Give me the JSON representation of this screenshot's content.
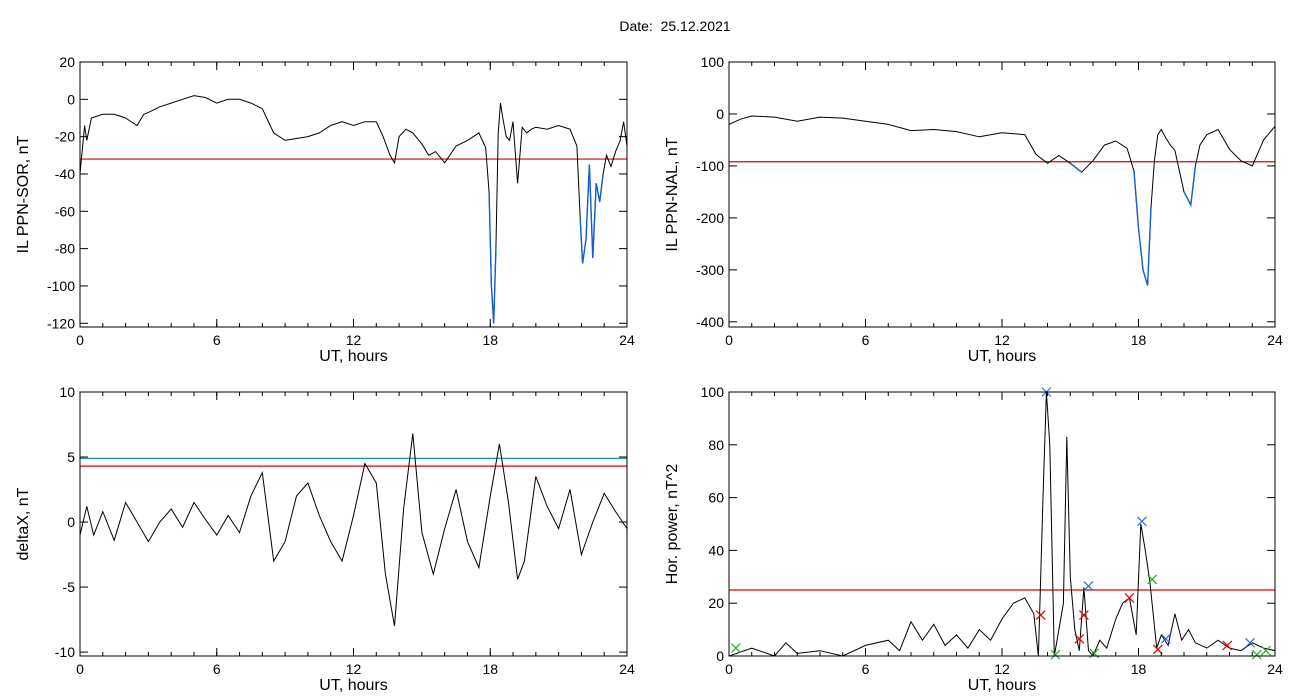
{
  "header": {
    "date_label": "Date:",
    "date_value": "25.12.2021"
  },
  "colors": {
    "trace": "#000000",
    "below_threshold": "#1060d0",
    "threshold": "#e00000",
    "upper_threshold": "#009090",
    "marker_blue": "#2070e0",
    "marker_red": "#d02020",
    "marker_green": "#20b020"
  },
  "chart_data": [
    {
      "type": "line",
      "panel": "top-left",
      "xlabel": "UT, hours",
      "ylabel": "IL PPN-SOR, nT",
      "xlim": [
        0,
        24
      ],
      "ylim": [
        -122,
        20
      ],
      "xticks": [
        0,
        6,
        12,
        18,
        24
      ],
      "yticks": [
        20,
        0,
        -20,
        -40,
        -60,
        -80,
        -100,
        -120
      ],
      "thresholds": [
        {
          "value": -32,
          "color": "red"
        }
      ],
      "series": [
        {
          "x": [
            0,
            0.2,
            0.3,
            0.5,
            1,
            1.5,
            2,
            2.5,
            2.8,
            3,
            3.5,
            4,
            4.5,
            5,
            5.5,
            6,
            6.5,
            7,
            7.5,
            8,
            8.5,
            9,
            9.5,
            10,
            10.5,
            11,
            11.5,
            12,
            12.5,
            13,
            13.3,
            13.6,
            13.8,
            14,
            14.3,
            14.6,
            15,
            15.3,
            15.6,
            16,
            16.5,
            17,
            17.5,
            17.8,
            17.95,
            18.05,
            18.15,
            18.25,
            18.35,
            18.45,
            18.55,
            18.7,
            18.85,
            19,
            19.2,
            19.4,
            19.6,
            19.8,
            20,
            20.5,
            21,
            21.5,
            21.8,
            21.95,
            22.05,
            22.2,
            22.35,
            22.5,
            22.65,
            22.8,
            22.95,
            23.1,
            23.3,
            23.5,
            23.7,
            23.85,
            24
          ],
          "y": [
            -40,
            -14,
            -22,
            -10,
            -8,
            -8,
            -10,
            -14,
            -8,
            -7,
            -4,
            -2,
            0,
            2,
            1,
            -2,
            0,
            0,
            -2,
            -5,
            -18,
            -22,
            -21,
            -20,
            -18,
            -14,
            -12,
            -14,
            -12,
            -12,
            -20,
            -30,
            -34,
            -20,
            -16,
            -18,
            -24,
            -30,
            -28,
            -34,
            -25,
            -22,
            -18,
            -26,
            -50,
            -100,
            -120,
            -80,
            -18,
            -2,
            -10,
            -20,
            -22,
            -12,
            -45,
            -15,
            -18,
            -16,
            -15,
            -16,
            -14,
            -16,
            -25,
            -65,
            -88,
            -75,
            -35,
            -85,
            -45,
            -55,
            -40,
            -30,
            -36,
            -28,
            -22,
            -12,
            -25
          ]
        }
      ]
    },
    {
      "type": "line",
      "panel": "top-right",
      "xlabel": "UT, hours",
      "ylabel": "IL PPN-NAL, nT",
      "xlim": [
        0,
        24
      ],
      "ylim": [
        -410,
        100
      ],
      "xticks": [
        0,
        6,
        12,
        18,
        24
      ],
      "yticks": [
        100,
        0,
        -100,
        -200,
        -300,
        -400
      ],
      "thresholds": [
        {
          "value": -92,
          "color": "red"
        }
      ],
      "series": [
        {
          "x": [
            0,
            0.5,
            1,
            2,
            3,
            4,
            5,
            6,
            7,
            8,
            9,
            10,
            11,
            12,
            13,
            13.5,
            14,
            14.5,
            15,
            15.5,
            16,
            16.5,
            17,
            17.5,
            17.8,
            18,
            18.2,
            18.4,
            18.55,
            18.7,
            18.85,
            19,
            19.2,
            19.4,
            19.6,
            20,
            20.3,
            20.5,
            20.7,
            21,
            21.5,
            22,
            22.5,
            23,
            23.5,
            24
          ],
          "y": [
            -20,
            -10,
            -4,
            -6,
            -14,
            -6,
            -8,
            -14,
            -20,
            -32,
            -30,
            -34,
            -44,
            -36,
            -40,
            -78,
            -95,
            -80,
            -95,
            -112,
            -90,
            -60,
            -52,
            -66,
            -110,
            -220,
            -300,
            -330,
            -180,
            -90,
            -40,
            -30,
            -46,
            -60,
            -70,
            -150,
            -175,
            -100,
            -60,
            -40,
            -30,
            -68,
            -90,
            -100,
            -50,
            -24
          ]
        }
      ]
    },
    {
      "type": "line",
      "panel": "bottom-left",
      "xlabel": "UT, hours",
      "ylabel": "deltaX, nT",
      "xlim": [
        0,
        24
      ],
      "ylim": [
        -10.3,
        10
      ],
      "xticks": [
        0,
        6,
        12,
        18,
        24
      ],
      "yticks": [
        10,
        5,
        0,
        -5,
        -10
      ],
      "ytick_labels": [
        "10",
        "5",
        "0",
        "-5",
        "-10"
      ],
      "thresholds": [
        {
          "value": 4.9,
          "color": "teal"
        },
        {
          "value": 4.3,
          "color": "red"
        }
      ],
      "series": [
        {
          "x": [
            0,
            0.3,
            0.6,
            1,
            1.5,
            2,
            2.5,
            3,
            3.5,
            4,
            4.5,
            5,
            5.5,
            6,
            6.5,
            7,
            7.5,
            8,
            8.5,
            9,
            9.5,
            10,
            10.5,
            11,
            11.5,
            12,
            12.5,
            13,
            13.4,
            13.8,
            14.2,
            14.6,
            15,
            15.5,
            16,
            16.5,
            17,
            17.5,
            18,
            18.4,
            18.8,
            19.2,
            19.5,
            20,
            20.5,
            21,
            21.5,
            22,
            22.5,
            23,
            23.5,
            24
          ],
          "y": [
            -1,
            1.2,
            -1,
            0.8,
            -1.4,
            1.5,
            0,
            -1.5,
            0,
            1,
            -0.4,
            1.5,
            0.2,
            -1,
            0.5,
            -0.8,
            2,
            3.8,
            -3,
            -1.5,
            2,
            3,
            0.5,
            -1.5,
            -3,
            0.5,
            4.5,
            3,
            -4,
            -8,
            1,
            6.8,
            -0.8,
            -4,
            -0.5,
            2.5,
            -1.5,
            -3.5,
            2,
            6,
            1.5,
            -4.4,
            -3,
            3.5,
            1.2,
            -0.5,
            2.5,
            -2.5,
            0,
            2.2,
            0.8,
            -0.5
          ]
        }
      ]
    },
    {
      "type": "line",
      "panel": "bottom-right",
      "xlabel": "UT, hours",
      "ylabel": "Hor. power, nT^2",
      "xlim": [
        0,
        24
      ],
      "ylim": [
        0,
        100
      ],
      "xticks": [
        0,
        6,
        12,
        18,
        24
      ],
      "yticks": [
        100,
        80,
        60,
        40,
        20,
        0
      ],
      "thresholds": [
        {
          "value": 25,
          "color": "red"
        }
      ],
      "series": [
        {
          "x": [
            0,
            1,
            2,
            2.5,
            3,
            4,
            5,
            6,
            7,
            7.5,
            8,
            8.5,
            9,
            9.5,
            10,
            10.5,
            11,
            11.5,
            12,
            12.5,
            13,
            13.4,
            13.6,
            13.8,
            13.95,
            14.1,
            14.3,
            14.5,
            14.7,
            14.85,
            15,
            15.2,
            15.4,
            15.6,
            15.8,
            16,
            16.3,
            16.6,
            17,
            17.3,
            17.6,
            17.9,
            18.1,
            18.3,
            18.5,
            18.8,
            19,
            19.3,
            19.6,
            19.9,
            20.2,
            20.5,
            21,
            21.5,
            22,
            22.5,
            23,
            23.5,
            24
          ],
          "y": [
            0,
            3,
            0,
            5,
            1,
            2,
            0,
            4,
            6,
            2,
            13,
            6,
            12,
            4,
            8,
            3,
            10,
            6,
            14,
            20,
            22,
            16,
            0,
            60,
            100,
            80,
            0,
            10,
            20,
            83,
            30,
            10,
            2,
            26,
            2,
            0,
            6,
            3,
            14,
            20,
            22,
            8,
            50,
            40,
            28,
            3,
            8,
            4,
            16,
            6,
            10,
            5,
            3,
            6,
            3,
            2,
            5,
            3,
            2
          ]
        }
      ],
      "markers": [
        {
          "x": 0.3,
          "y": 3,
          "color": "green"
        },
        {
          "x": 13.7,
          "y": 15.5,
          "color": "red"
        },
        {
          "x": 13.95,
          "y": 100,
          "color": "blue"
        },
        {
          "x": 14.35,
          "y": 0.5,
          "color": "green"
        },
        {
          "x": 15.4,
          "y": 6.5,
          "color": "red"
        },
        {
          "x": 15.6,
          "y": 15.5,
          "color": "red"
        },
        {
          "x": 15.8,
          "y": 26.5,
          "color": "blue"
        },
        {
          "x": 16.05,
          "y": 1,
          "color": "green"
        },
        {
          "x": 17.6,
          "y": 22,
          "color": "red"
        },
        {
          "x": 18.15,
          "y": 51,
          "color": "blue"
        },
        {
          "x": 18.6,
          "y": 29,
          "color": "green"
        },
        {
          "x": 18.85,
          "y": 2.5,
          "color": "red"
        },
        {
          "x": 19.2,
          "y": 6.5,
          "color": "blue"
        },
        {
          "x": 21.9,
          "y": 4,
          "color": "red"
        },
        {
          "x": 22.9,
          "y": 5,
          "color": "blue"
        },
        {
          "x": 23.2,
          "y": 0.5,
          "color": "green"
        },
        {
          "x": 23.6,
          "y": 2,
          "color": "green"
        }
      ]
    }
  ]
}
